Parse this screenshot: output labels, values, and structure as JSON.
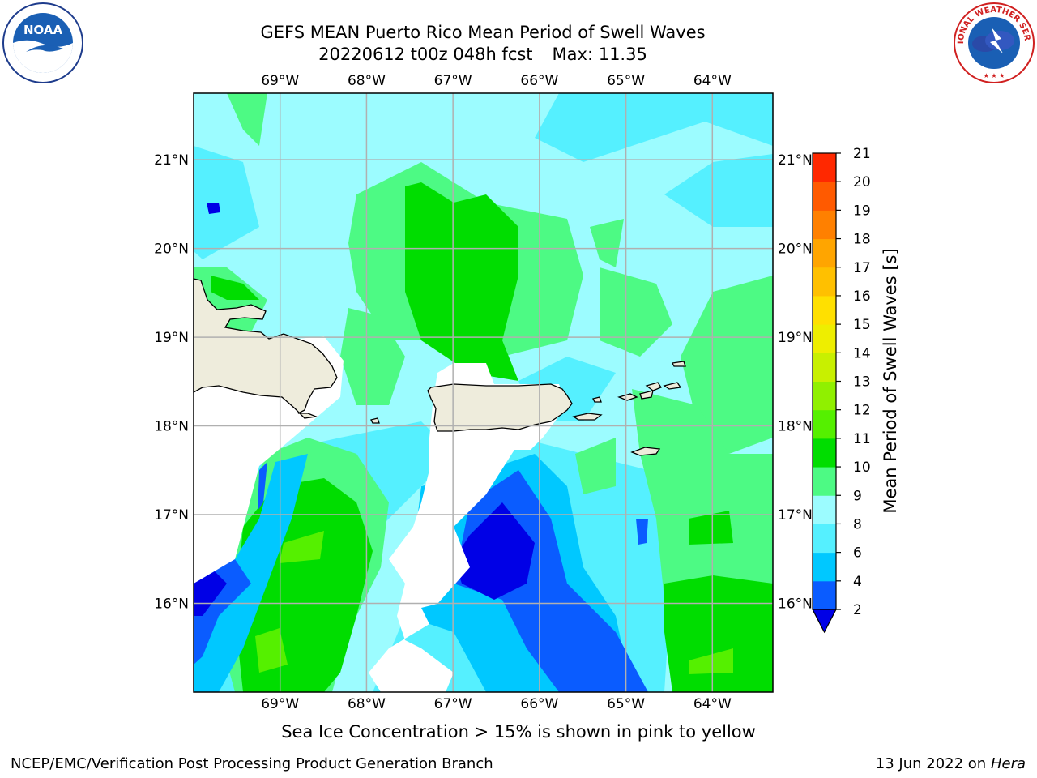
{
  "header": {
    "title_line1": "GEFS MEAN Puerto Rico Mean Period of Swell Waves",
    "title_line2_run": "20220612 t00z 048h fcst",
    "title_line2_max": "Max: 11.35"
  },
  "map": {
    "lon_labels": [
      "69°W",
      "68°W",
      "67°W",
      "66°W",
      "65°W",
      "64°W"
    ],
    "lat_labels": [
      "21°N",
      "20°N",
      "19°N",
      "18°N",
      "17°N",
      "16°N"
    ],
    "lon_values": [
      -69,
      -68,
      -67,
      -66,
      -65,
      -64
    ],
    "lat_values": [
      21,
      20,
      19,
      18,
      17,
      16
    ],
    "extent": {
      "lon_min": -70,
      "lon_max": -63.3,
      "lat_min": 15,
      "lat_max": 21.75
    },
    "max_value": 11.35,
    "units": "s"
  },
  "colorbar": {
    "label": "Mean Period of Swell Waves [s]",
    "ticks": [
      "2",
      "4",
      "6",
      "8",
      "9",
      "10",
      "11",
      "12",
      "13",
      "14",
      "15",
      "16",
      "17",
      "18",
      "19",
      "20",
      "21"
    ],
    "levels": [
      2,
      4,
      6,
      8,
      9,
      10,
      11,
      12,
      13,
      14,
      15,
      16,
      17,
      18,
      19,
      20,
      21
    ],
    "colors": [
      "#0a5cff",
      "#00c8ff",
      "#55f0ff",
      "#9cfcff",
      "#4dfa84",
      "#00dd00",
      "#55f000",
      "#90f000",
      "#c8f000",
      "#eeee00",
      "#ffe000",
      "#ffc000",
      "#ffa500",
      "#ff8000",
      "#ff5a00",
      "#ff2800",
      "#ff0000"
    ],
    "under_color": "#0000e6"
  },
  "palette": {
    "land": "#eeecdc",
    "masked": "#ffffff",
    "grid": "#b0b0b0"
  },
  "subtitle": "Sea Ice Concentration > 15% is shown in pink to yellow",
  "footer": {
    "left": "NCEP/EMC/Verification Post Processing Product Generation Branch",
    "right_date": "13 Jun 2022 on",
    "right_host": "Hera"
  },
  "logos": {
    "left": "noaa-logo",
    "right": "nws-logo",
    "left_text": "NOAA",
    "right_text": "NATIONAL WEATHER SERVICE"
  }
}
